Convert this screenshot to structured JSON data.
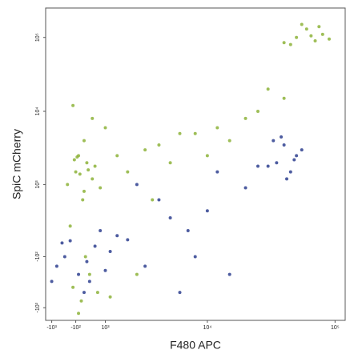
{
  "chart_data": {
    "type": "scatter",
    "x_label": "F480 APC",
    "y_label": "SpiC mCherry",
    "xscale": "asinh",
    "yscale": "asinh",
    "xlim": [
      -1250,
      120000
    ],
    "ylim": [
      -1500,
      250000
    ],
    "xticks": [
      {
        "value": -1000,
        "label": "-10³"
      },
      {
        "value": -100,
        "label": "-10²"
      },
      {
        "value": 1000,
        "label": "10³"
      },
      {
        "value": 10000,
        "label": "10⁴"
      },
      {
        "value": 100000,
        "label": "10⁵"
      }
    ],
    "yticks": [
      {
        "value": -1000,
        "label": "-10³"
      },
      {
        "value": -100,
        "label": "-10²"
      },
      {
        "value": 1000,
        "label": "10³"
      },
      {
        "value": 10000,
        "label": "10⁴"
      },
      {
        "value": 100000,
        "label": "10⁵"
      }
    ],
    "series": [
      {
        "color": "#8db33a",
        "x": [
          -300,
          -100,
          0,
          200,
          400,
          100,
          -200,
          300,
          500,
          -50,
          150,
          -400,
          250,
          0,
          600,
          800,
          -150,
          350,
          50,
          700,
          2000,
          3000,
          5000,
          8000,
          12000,
          15000,
          20000,
          10000,
          4000,
          25000,
          6000,
          1500,
          30000,
          40000,
          2500,
          1200,
          3500,
          50000,
          60000,
          70000,
          45000,
          80000,
          55000,
          65000,
          75000,
          40000,
          90000,
          500,
          -200,
          1000,
          200
        ],
        "y": [
          200,
          1500,
          2500,
          800,
          -300,
          -800,
          -500,
          2000,
          1200,
          2400,
          600,
          1000,
          -100,
          -1200,
          1800,
          900,
          2200,
          1600,
          1400,
          -600,
          1500,
          3000,
          2000,
          5000,
          6000,
          4000,
          8000,
          2500,
          3500,
          10000,
          5000,
          2500,
          20000,
          15000,
          -300,
          -700,
          600,
          100000,
          130000,
          90000,
          80000,
          110000,
          150000,
          105000,
          140000,
          85000,
          95000,
          8000,
          12000,
          6000,
          4000
        ]
      },
      {
        "color": "#2e3f8f",
        "x": [
          -800,
          -500,
          -300,
          0,
          300,
          600,
          1000,
          1500,
          -1000,
          200,
          800,
          -600,
          1200,
          2000,
          400,
          3000,
          5000,
          8000,
          4000,
          10000,
          15000,
          20000,
          6000,
          2500,
          7000,
          12000,
          25000,
          35000,
          40000,
          45000,
          30000,
          50000,
          38000,
          42000,
          55000,
          33000,
          48000
        ],
        "y": [
          -200,
          -100,
          50,
          -300,
          -150,
          0,
          -250,
          100,
          -400,
          -600,
          150,
          30,
          -50,
          60,
          -400,
          -200,
          300,
          -100,
          600,
          400,
          -300,
          900,
          -600,
          1000,
          150,
          1500,
          1800,
          2000,
          3500,
          1500,
          1800,
          2500,
          4500,
          1200,
          3000,
          4000,
          2200
        ]
      }
    ]
  }
}
